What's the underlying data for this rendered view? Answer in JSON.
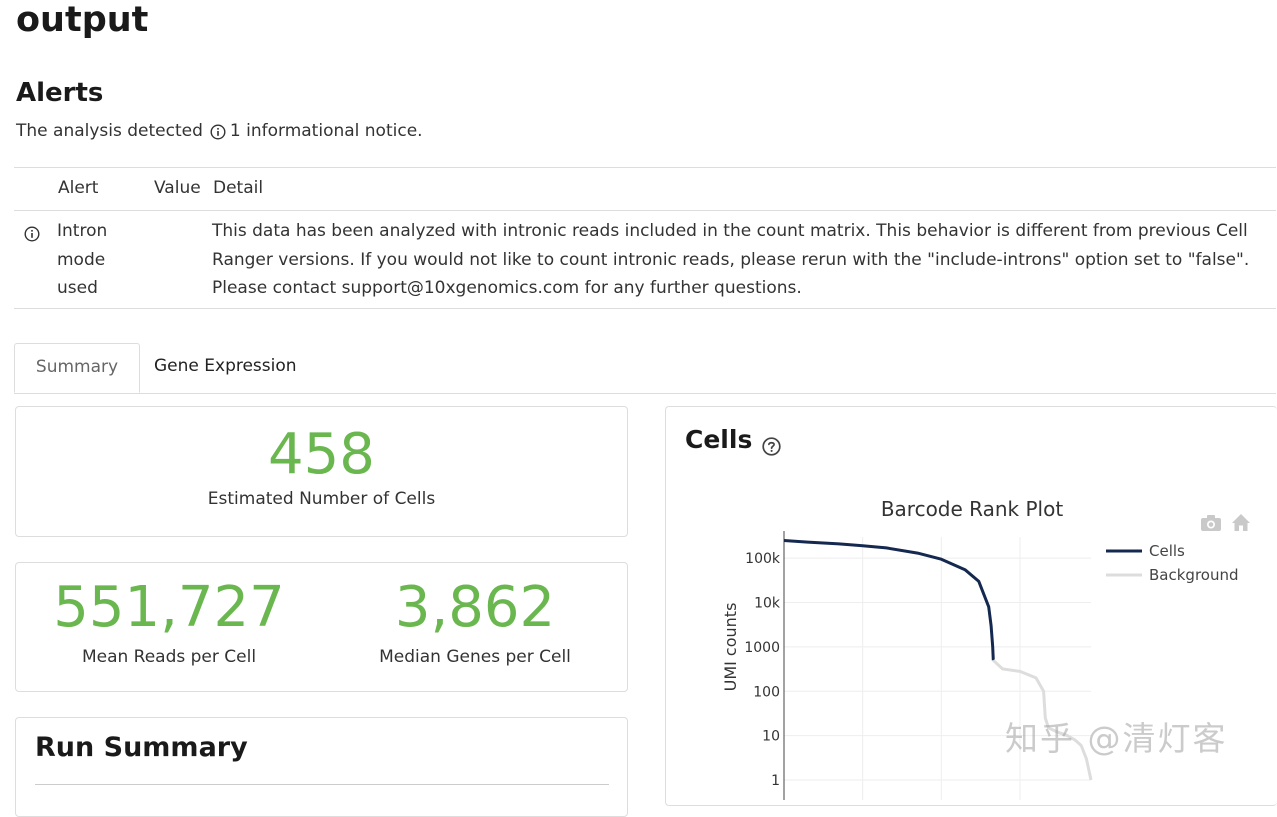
{
  "page": {
    "title": "output"
  },
  "alerts": {
    "heading": "Alerts",
    "summary_prefix": "The analysis detected",
    "summary_suffix": "1 informational notice.",
    "columns": {
      "alert": "Alert",
      "value": "Value",
      "detail": "Detail"
    },
    "rows": [
      {
        "icon": "info-icon",
        "name": "Intron mode used",
        "value": "",
        "detail": "This data has been analyzed with intronic reads included in the count matrix. This behavior is different from previous Cell Ranger versions. If you would not like to count intronic reads, please rerun with the \"include-introns\" option set to \"false\". Please contact support@10xgenomics.com for any further questions."
      }
    ]
  },
  "tabs": [
    {
      "label": "Summary",
      "active": true
    },
    {
      "label": "Gene Expression",
      "active": false
    }
  ],
  "metrics": {
    "cells": {
      "value": "458",
      "label": "Estimated Number of Cells"
    },
    "mean_reads": {
      "value": "551,727",
      "label": "Mean Reads per Cell"
    },
    "median_genes": {
      "value": "3,862",
      "label": "Median Genes per Cell"
    }
  },
  "run_summary": {
    "title": "Run Summary"
  },
  "cells_panel": {
    "title": "Cells",
    "help_icon": "question-circle-icon",
    "toolbar_icons": [
      "camera-icon",
      "home-icon"
    ]
  },
  "chart_data": {
    "type": "line",
    "title": "Barcode Rank Plot",
    "xlabel": "",
    "ylabel": "UMI counts",
    "y_scale": "log",
    "x_scale": "log",
    "y_tick_labels": [
      "1",
      "10",
      "100",
      "1000",
      "10k",
      "100k"
    ],
    "grid": true,
    "legend_position": "top-right",
    "series": [
      {
        "name": "Cells",
        "color": "#142850",
        "x": [
          1,
          2,
          5,
          10,
          20,
          50,
          100,
          200,
          300,
          400,
          430,
          450,
          458
        ],
        "y": [
          250000,
          230000,
          210000,
          190000,
          170000,
          130000,
          95000,
          55000,
          30000,
          8000,
          3000,
          1000,
          500
        ]
      },
      {
        "name": "Background",
        "color": "#dddddd",
        "x": [
          458,
          600,
          1000,
          1600,
          2000,
          2100,
          2300,
          3000,
          4000,
          5000,
          6000,
          7000,
          8000
        ],
        "y": [
          500,
          320,
          280,
          200,
          100,
          25,
          15,
          12,
          10,
          8,
          6,
          3,
          1
        ]
      }
    ]
  },
  "watermark": "知乎 @清灯客",
  "colors": {
    "metric_green": "#6ab74f",
    "cells_series": "#142850",
    "background_series": "#dddddd"
  }
}
